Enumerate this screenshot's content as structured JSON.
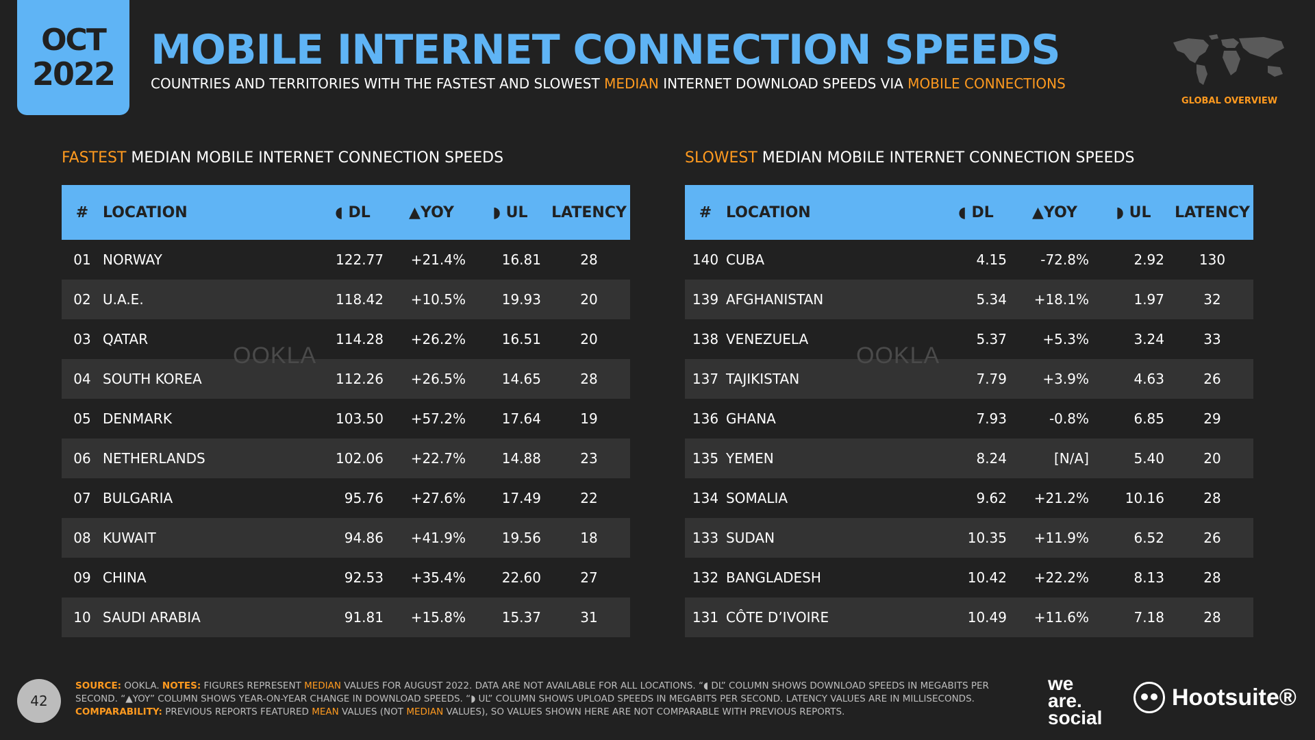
{
  "header": {
    "month": "OCT",
    "year": "2022",
    "title": "MOBILE INTERNET CONNECTION SPEEDS",
    "subtitle_pre": "COUNTRIES AND TERRITORIES WITH THE FASTEST AND SLOWEST ",
    "subtitle_hl1": "MEDIAN",
    "subtitle_mid": " INTERNET DOWNLOAD SPEEDS VIA ",
    "subtitle_hl2": "MOBILE CONNECTIONS",
    "global_overview": "GLOBAL OVERVIEW"
  },
  "columns": {
    "num": "#",
    "location": "LOCATION",
    "dl": "◖ DL",
    "yoy": "▲YOY",
    "ul": "◗ UL",
    "latency": "LATENCY"
  },
  "fastest": {
    "title_hl": "FASTEST",
    "title_rest": " MEDIAN MOBILE INTERNET CONNECTION SPEEDS",
    "watermark": "OOKLA",
    "rows": [
      {
        "num": "01",
        "location": "NORWAY",
        "dl": "122.77",
        "yoy": "+21.4%",
        "ul": "16.81",
        "latency": "28"
      },
      {
        "num": "02",
        "location": "U.A.E.",
        "dl": "118.42",
        "yoy": "+10.5%",
        "ul": "19.93",
        "latency": "20"
      },
      {
        "num": "03",
        "location": "QATAR",
        "dl": "114.28",
        "yoy": "+26.2%",
        "ul": "16.51",
        "latency": "20"
      },
      {
        "num": "04",
        "location": "SOUTH KOREA",
        "dl": "112.26",
        "yoy": "+26.5%",
        "ul": "14.65",
        "latency": "28"
      },
      {
        "num": "05",
        "location": "DENMARK",
        "dl": "103.50",
        "yoy": "+57.2%",
        "ul": "17.64",
        "latency": "19"
      },
      {
        "num": "06",
        "location": "NETHERLANDS",
        "dl": "102.06",
        "yoy": "+22.7%",
        "ul": "14.88",
        "latency": "23"
      },
      {
        "num": "07",
        "location": "BULGARIA",
        "dl": "95.76",
        "yoy": "+27.6%",
        "ul": "17.49",
        "latency": "22"
      },
      {
        "num": "08",
        "location": "KUWAIT",
        "dl": "94.86",
        "yoy": "+41.9%",
        "ul": "19.56",
        "latency": "18"
      },
      {
        "num": "09",
        "location": "CHINA",
        "dl": "92.53",
        "yoy": "+35.4%",
        "ul": "22.60",
        "latency": "27"
      },
      {
        "num": "10",
        "location": "SAUDI ARABIA",
        "dl": "91.81",
        "yoy": "+15.8%",
        "ul": "15.37",
        "latency": "31"
      }
    ]
  },
  "slowest": {
    "title_hl": "SLOWEST",
    "title_rest": " MEDIAN MOBILE INTERNET CONNECTION SPEEDS",
    "watermark": "OOKLA",
    "rows": [
      {
        "num": "140",
        "location": "CUBA",
        "dl": "4.15",
        "yoy": "-72.8%",
        "ul": "2.92",
        "latency": "130"
      },
      {
        "num": "139",
        "location": "AFGHANISTAN",
        "dl": "5.34",
        "yoy": "+18.1%",
        "ul": "1.97",
        "latency": "32"
      },
      {
        "num": "138",
        "location": "VENEZUELA",
        "dl": "5.37",
        "yoy": "+5.3%",
        "ul": "3.24",
        "latency": "33"
      },
      {
        "num": "137",
        "location": "TAJIKISTAN",
        "dl": "7.79",
        "yoy": "+3.9%",
        "ul": "4.63",
        "latency": "26"
      },
      {
        "num": "136",
        "location": "GHANA",
        "dl": "7.93",
        "yoy": "-0.8%",
        "ul": "6.85",
        "latency": "29"
      },
      {
        "num": "135",
        "location": "YEMEN",
        "dl": "8.24",
        "yoy": "[N/A]",
        "ul": "5.40",
        "latency": "20"
      },
      {
        "num": "134",
        "location": "SOMALIA",
        "dl": "9.62",
        "yoy": "+21.2%",
        "ul": "10.16",
        "latency": "28"
      },
      {
        "num": "133",
        "location": "SUDAN",
        "dl": "10.35",
        "yoy": "+11.9%",
        "ul": "6.52",
        "latency": "26"
      },
      {
        "num": "132",
        "location": "BANGLADESH",
        "dl": "10.42",
        "yoy": "+22.2%",
        "ul": "8.13",
        "latency": "28"
      },
      {
        "num": "131",
        "location": "CÔTE D’IVOIRE",
        "dl": "10.49",
        "yoy": "+11.6%",
        "ul": "7.18",
        "latency": "28"
      }
    ]
  },
  "footer": {
    "page_number": "42",
    "source_label": "SOURCE:",
    "source_text": " OOKLA. ",
    "notes_label": "NOTES:",
    "notes_1": " FIGURES REPRESENT ",
    "notes_median": "MEDIAN",
    "notes_2": " VALUES FOR AUGUST 2022. DATA ARE NOT AVAILABLE FOR ALL LOCATIONS. “◖ DL” COLUMN SHOWS DOWNLOAD SPEEDS IN MEGABITS PER SECOND. “▲YOY” COLUMN SHOWS YEAR-ON-YEAR CHANGE IN DOWNLOAD SPEEDS. “◗ UL” COLUMN SHOWS UPLOAD SPEEDS IN MEGABITS PER SECOND. LATENCY VALUES ARE IN MILLISECONDS. ",
    "comparability_label": "COMPARABILITY:",
    "comp_1": " PREVIOUS REPORTS FEATURED ",
    "comp_mean": "MEAN",
    "comp_2": " VALUES (NOT ",
    "comp_median": "MEDIAN",
    "comp_3": " VALUES), SO VALUES SHOWN HERE ARE NOT COMPARABLE WITH PREVIOUS REPORTS.",
    "brand1_line1": "we",
    "brand1_line2": "are.",
    "brand1_line3": "social",
    "brand2": "Hootsuite®"
  }
}
